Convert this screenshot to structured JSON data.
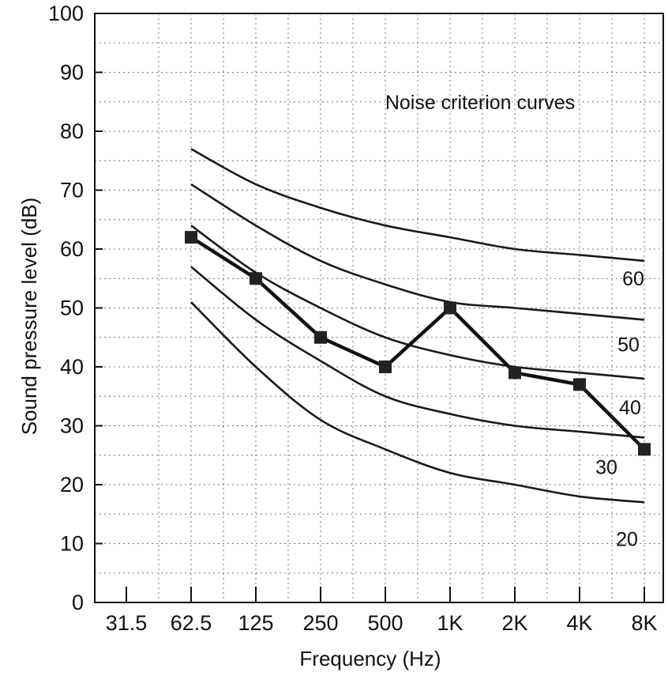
{
  "chart_data": {
    "type": "line",
    "title": "",
    "annotation": "Noise criterion curves",
    "xlabel": "Frequency (Hz)",
    "ylabel": "Sound pressure level (dB)",
    "categories": [
      "31.5",
      "62.5",
      "125",
      "250",
      "500",
      "1K",
      "2K",
      "4K",
      "8K"
    ],
    "ylim": [
      0,
      100
    ],
    "yticks": [
      "0",
      "10",
      "20",
      "30",
      "40",
      "50",
      "60",
      "70",
      "80",
      "90",
      "100"
    ],
    "grid": true,
    "legend": "none",
    "series": [
      {
        "name": "60",
        "values": [
          null,
          77,
          71,
          67,
          64,
          62,
          60,
          59,
          58
        ]
      },
      {
        "name": "50",
        "values": [
          null,
          71,
          64,
          58,
          54,
          51,
          50,
          49,
          48
        ]
      },
      {
        "name": "40",
        "values": [
          null,
          64,
          56,
          50,
          45,
          42,
          40,
          39,
          38
        ]
      },
      {
        "name": "30",
        "values": [
          null,
          57,
          48,
          41,
          35,
          32,
          30,
          29,
          28
        ]
      },
      {
        "name": "20",
        "values": [
          null,
          51,
          40,
          31,
          26,
          22,
          20,
          18,
          17
        ]
      },
      {
        "name": "",
        "values": [
          null,
          62,
          55,
          45,
          40,
          50,
          39,
          37,
          26
        ]
      }
    ]
  }
}
